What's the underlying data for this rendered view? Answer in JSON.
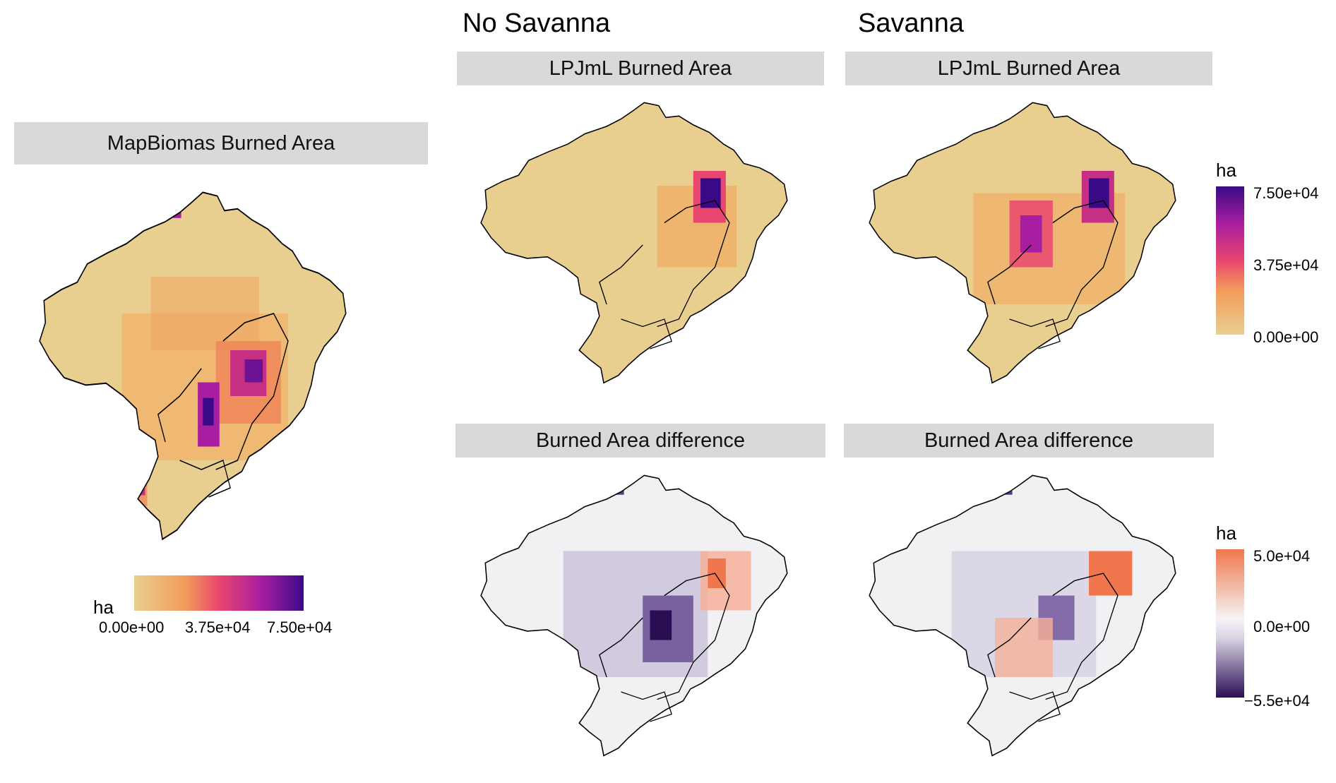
{
  "column_titles": {
    "no_savanna": "No Savanna",
    "savanna": "Savanna"
  },
  "panels": {
    "mapbiomas": {
      "title": "MapBiomas Burned Area"
    },
    "nosav_lpjml": {
      "title": "LPJmL Burned Area"
    },
    "sav_lpjml": {
      "title": "LPJmL Burned Area"
    },
    "nosav_diff": {
      "title": "Burned Area difference"
    },
    "sav_diff": {
      "title": "Burned Area difference"
    }
  },
  "legends": {
    "burned": {
      "title": "ha",
      "ticks": [
        "0.00e+00",
        "3.75e+04",
        "7.50e+04"
      ],
      "colors": [
        "#e8cf90",
        "#f39b5a",
        "#e8466e",
        "#a81ea0",
        "#3a0a86"
      ]
    },
    "difference": {
      "title": "ha",
      "ticks": [
        "5.0e+04",
        "0.0e+00",
        "−5.5e+04"
      ],
      "colors": [
        "#f0764e",
        "#f5f4f5",
        "#2a0e54"
      ]
    }
  },
  "colors": {
    "strip_bg": "#d9d9d9",
    "map_base": "#e8cf90",
    "diff_base": "#f1f1f3",
    "outline": "#000000"
  }
}
